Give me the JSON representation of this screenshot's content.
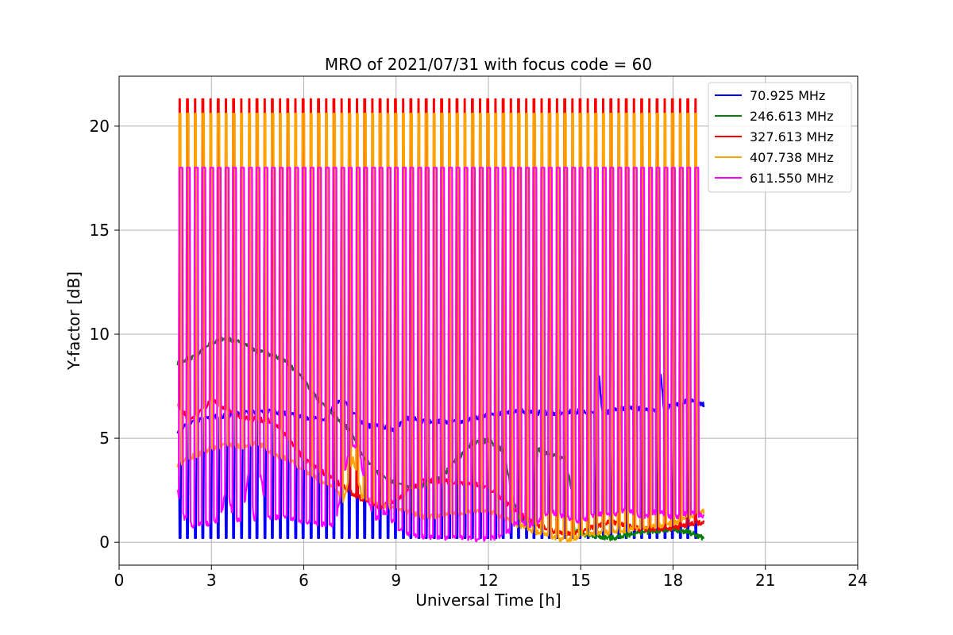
{
  "chart_data": {
    "type": "line",
    "title": "MRO of 2021/07/31 with focus code = 60",
    "xlabel": "Universal Time [h]",
    "ylabel": "Y-factor [dB]",
    "xlim": [
      0,
      24
    ],
    "ylim": [
      -1.1,
      22.4
    ],
    "xticks": [
      0,
      3,
      6,
      9,
      12,
      15,
      18,
      21,
      24
    ],
    "yticks": [
      0,
      5,
      10,
      15,
      20
    ],
    "grid": true,
    "legend_position": "top-right",
    "periodic_calibration": {
      "start_h": 1.95,
      "end_h": 18.8,
      "period_h": 0.25,
      "spike_widths_h": {
        "407.738 MHz": 0.07,
        "327.613 MHz": 0.05,
        "611.550 MHz": 0.12
      }
    },
    "series": [
      {
        "name": " 70.925 MHz",
        "color": "#0000ff",
        "spike_peak": 0.2,
        "points": [
          [
            1.9,
            5.2
          ],
          [
            2.3,
            5.8
          ],
          [
            3.0,
            6.0
          ],
          [
            4.0,
            6.2
          ],
          [
            5.0,
            6.3
          ],
          [
            6.0,
            6.0
          ],
          [
            6.8,
            5.9
          ],
          [
            7.0,
            6.8
          ],
          [
            7.4,
            6.7
          ],
          [
            8.0,
            5.6
          ],
          [
            8.5,
            5.6
          ],
          [
            9.0,
            5.4
          ],
          [
            9.3,
            6.0
          ],
          [
            10.0,
            5.8
          ],
          [
            11.0,
            5.8
          ],
          [
            12.0,
            6.1
          ],
          [
            13.0,
            6.3
          ],
          [
            14.0,
            6.2
          ],
          [
            15.0,
            6.3
          ],
          [
            15.5,
            6.2
          ],
          [
            15.6,
            7.9
          ],
          [
            15.7,
            6.2
          ],
          [
            16.0,
            6.3
          ],
          [
            16.5,
            6.5
          ],
          [
            17.0,
            6.4
          ],
          [
            17.5,
            6.3
          ],
          [
            17.6,
            8.1
          ],
          [
            17.7,
            6.4
          ],
          [
            18.0,
            6.6
          ],
          [
            18.5,
            6.8
          ],
          [
            19.0,
            6.6
          ]
        ]
      },
      {
        "name": " 246.613 MHz",
        "color": "#007f00",
        "spike_peak": null,
        "points": [
          [
            1.9,
            8.6
          ],
          [
            2.5,
            9.0
          ],
          [
            3.0,
            9.6
          ],
          [
            3.5,
            9.8
          ],
          [
            4.0,
            9.6
          ],
          [
            4.5,
            9.2
          ],
          [
            5.0,
            9.0
          ],
          [
            5.5,
            8.6
          ],
          [
            6.0,
            7.8
          ],
          [
            6.5,
            6.8
          ],
          [
            7.0,
            6.1
          ],
          [
            7.5,
            5.4
          ],
          [
            8.0,
            4.0
          ],
          [
            8.5,
            3.2
          ],
          [
            9.0,
            2.8
          ],
          [
            9.5,
            2.6
          ],
          [
            10.0,
            2.8
          ],
          [
            10.5,
            3.2
          ],
          [
            11.0,
            4.0
          ],
          [
            11.5,
            4.8
          ],
          [
            12.0,
            4.9
          ],
          [
            12.5,
            4.4
          ],
          [
            12.8,
            2.0
          ],
          [
            13.0,
            1.2
          ],
          [
            13.5,
            1.0
          ],
          [
            13.6,
            4.5
          ],
          [
            14.0,
            4.2
          ],
          [
            14.5,
            4.0
          ],
          [
            14.7,
            2.5
          ],
          [
            14.8,
            0.6
          ],
          [
            15.0,
            0.4
          ],
          [
            15.5,
            0.3
          ],
          [
            16.0,
            0.2
          ],
          [
            17.0,
            0.5
          ],
          [
            18.0,
            0.6
          ],
          [
            18.5,
            0.5
          ],
          [
            19.0,
            0.2
          ]
        ]
      },
      {
        "name": " 327.613 MHz",
        "color": "#ff0000",
        "spike_peak": 21.3,
        "points": [
          [
            1.9,
            6.6
          ],
          [
            2.3,
            5.8
          ],
          [
            3.0,
            6.8
          ],
          [
            3.5,
            6.4
          ],
          [
            4.0,
            6.0
          ],
          [
            5.0,
            5.8
          ],
          [
            5.5,
            5.0
          ],
          [
            6.0,
            4.0
          ],
          [
            6.5,
            3.5
          ],
          [
            7.0,
            3.0
          ],
          [
            7.5,
            2.4
          ],
          [
            8.0,
            2.0
          ],
          [
            8.5,
            1.7
          ],
          [
            9.0,
            2.0
          ],
          [
            9.5,
            2.6
          ],
          [
            10.0,
            3.0
          ],
          [
            11.0,
            2.9
          ],
          [
            11.5,
            2.8
          ],
          [
            12.0,
            2.6
          ],
          [
            12.5,
            2.0
          ],
          [
            13.0,
            1.4
          ],
          [
            13.5,
            0.9
          ],
          [
            14.0,
            0.6
          ],
          [
            14.5,
            0.4
          ],
          [
            15.0,
            0.5
          ],
          [
            15.5,
            0.8
          ],
          [
            16.0,
            1.0
          ],
          [
            16.5,
            0.8
          ],
          [
            17.0,
            0.6
          ],
          [
            18.0,
            0.7
          ],
          [
            19.0,
            1.0
          ]
        ]
      },
      {
        "name": " 407.738 MHz",
        "color": "#ffa500",
        "spike_peak": 20.6,
        "points": [
          [
            1.9,
            3.7
          ],
          [
            2.2,
            4.0
          ],
          [
            3.0,
            4.5
          ],
          [
            3.5,
            4.7
          ],
          [
            4.0,
            4.6
          ],
          [
            4.5,
            4.8
          ],
          [
            5.0,
            4.2
          ],
          [
            5.5,
            4.0
          ],
          [
            6.0,
            3.5
          ],
          [
            6.5,
            3.0
          ],
          [
            7.0,
            2.6
          ],
          [
            7.3,
            2.0
          ],
          [
            7.6,
            4.0
          ],
          [
            7.9,
            2.2
          ],
          [
            8.5,
            1.8
          ],
          [
            9.0,
            1.6
          ],
          [
            9.5,
            1.4
          ],
          [
            10.0,
            1.2
          ],
          [
            11.0,
            1.4
          ],
          [
            12.0,
            1.5
          ],
          [
            12.5,
            1.2
          ],
          [
            13.0,
            0.8
          ],
          [
            13.5,
            0.5
          ],
          [
            14.0,
            0.3
          ],
          [
            14.5,
            0.1
          ],
          [
            15.0,
            0.3
          ],
          [
            15.5,
            0.4
          ],
          [
            16.0,
            0.5
          ],
          [
            16.5,
            0.6
          ],
          [
            17.0,
            0.7
          ],
          [
            18.0,
            0.9
          ],
          [
            19.0,
            1.5
          ]
        ]
      },
      {
        "name": " 611.550 MHz",
        "color": "#ff00ff",
        "spike_peak": 18.0,
        "points": [
          [
            1.9,
            2.5
          ],
          [
            2.1,
            1.2
          ],
          [
            2.4,
            0.8
          ],
          [
            3.0,
            0.9
          ],
          [
            3.3,
            1.2
          ],
          [
            3.5,
            2.8
          ],
          [
            3.7,
            1.2
          ],
          [
            4.0,
            1.0
          ],
          [
            4.2,
            3.2
          ],
          [
            4.4,
            1.0
          ],
          [
            4.6,
            3.3
          ],
          [
            4.8,
            1.2
          ],
          [
            5.5,
            1.2
          ],
          [
            6.0,
            1.0
          ],
          [
            6.5,
            0.9
          ],
          [
            7.0,
            0.8
          ],
          [
            7.3,
            3.0
          ],
          [
            7.5,
            4.8
          ],
          [
            7.8,
            4.5
          ],
          [
            8.0,
            2.5
          ],
          [
            8.3,
            1.0
          ],
          [
            8.6,
            1.5
          ],
          [
            9.0,
            0.8
          ],
          [
            9.3,
            0.4
          ],
          [
            9.8,
            0.3
          ],
          [
            10.5,
            0.2
          ],
          [
            11.0,
            0.3
          ],
          [
            11.5,
            0.15
          ],
          [
            12.0,
            0.2
          ],
          [
            12.5,
            0.3
          ],
          [
            13.0,
            1.0
          ],
          [
            13.5,
            0.8
          ],
          [
            14.0,
            1.5
          ],
          [
            14.5,
            1.2
          ],
          [
            15.0,
            1.0
          ],
          [
            15.5,
            1.4
          ],
          [
            16.0,
            1.3
          ],
          [
            16.5,
            1.6
          ],
          [
            17.0,
            1.2
          ],
          [
            17.5,
            1.5
          ],
          [
            18.0,
            1.2
          ],
          [
            18.5,
            1.4
          ],
          [
            19.0,
            1.3
          ]
        ]
      }
    ]
  }
}
